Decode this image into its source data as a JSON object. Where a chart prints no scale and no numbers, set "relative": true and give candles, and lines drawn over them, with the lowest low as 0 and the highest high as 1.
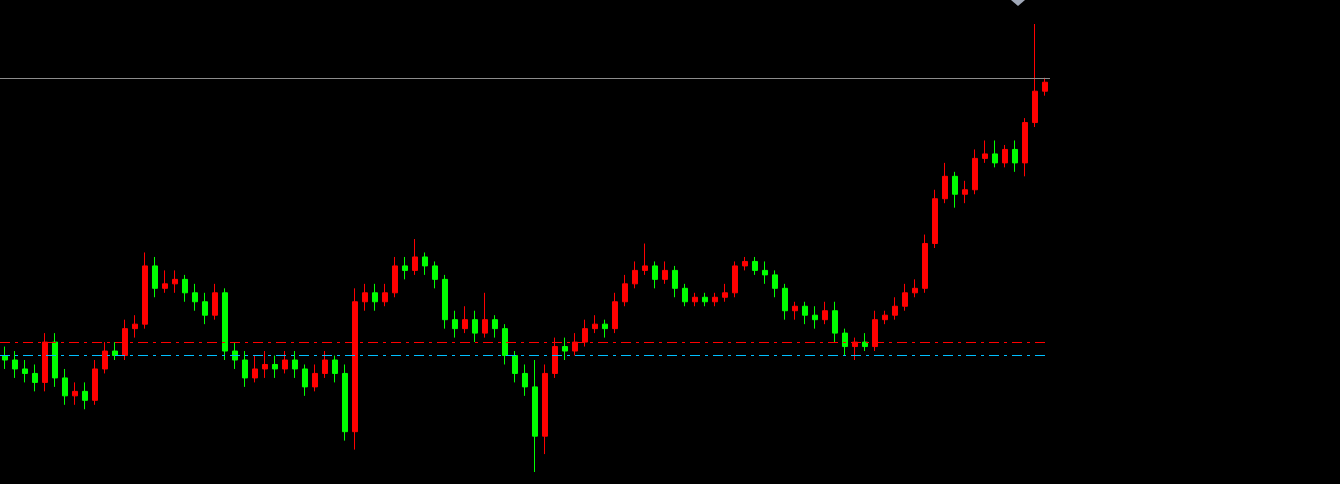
{
  "chart_data": {
    "type": "candlestick",
    "relative": true,
    "categories": [
      null,
      null,
      null,
      null,
      null,
      null,
      null,
      null,
      null,
      null,
      null,
      null,
      null,
      null,
      null,
      null,
      null,
      null,
      null,
      null,
      null,
      null,
      null,
      null,
      null,
      null,
      null,
      null,
      null,
      null,
      null,
      null,
      null,
      null,
      null,
      null,
      null,
      null,
      null,
      null,
      null,
      null,
      null,
      null,
      null,
      null,
      null,
      null,
      null,
      null,
      null,
      null,
      null,
      null,
      null,
      null,
      null,
      null,
      null,
      null,
      null,
      null,
      null,
      null,
      null,
      null,
      null,
      null,
      null,
      null,
      null,
      null,
      null,
      null,
      null,
      null,
      null,
      null,
      null,
      null,
      null,
      null,
      null,
      null,
      null,
      null,
      null,
      null,
      null,
      null,
      null,
      null,
      null,
      null,
      null,
      null,
      null,
      null,
      null,
      null,
      null,
      null,
      null,
      null,
      null
    ],
    "ohlc": [
      [
        0.26,
        0.28,
        0.23,
        0.25
      ],
      [
        0.25,
        0.27,
        0.21,
        0.23
      ],
      [
        0.23,
        0.25,
        0.2,
        0.22
      ],
      [
        0.22,
        0.24,
        0.18,
        0.2
      ],
      [
        0.2,
        0.31,
        0.18,
        0.29
      ],
      [
        0.29,
        0.31,
        0.19,
        0.21
      ],
      [
        0.21,
        0.23,
        0.15,
        0.17
      ],
      [
        0.17,
        0.2,
        0.15,
        0.18
      ],
      [
        0.18,
        0.2,
        0.14,
        0.16
      ],
      [
        0.16,
        0.25,
        0.15,
        0.23
      ],
      [
        0.23,
        0.29,
        0.22,
        0.27
      ],
      [
        0.27,
        0.29,
        0.25,
        0.26
      ],
      [
        0.26,
        0.34,
        0.25,
        0.32
      ],
      [
        0.32,
        0.35,
        0.3,
        0.33
      ],
      [
        0.33,
        0.49,
        0.32,
        0.46
      ],
      [
        0.46,
        0.48,
        0.39,
        0.41
      ],
      [
        0.41,
        0.45,
        0.4,
        0.42
      ],
      [
        0.42,
        0.45,
        0.4,
        0.43
      ],
      [
        0.43,
        0.44,
        0.38,
        0.4
      ],
      [
        0.4,
        0.42,
        0.36,
        0.38
      ],
      [
        0.38,
        0.4,
        0.33,
        0.35
      ],
      [
        0.35,
        0.42,
        0.34,
        0.4
      ],
      [
        0.4,
        0.41,
        0.25,
        0.27
      ],
      [
        0.27,
        0.29,
        0.23,
        0.25
      ],
      [
        0.25,
        0.27,
        0.19,
        0.21
      ],
      [
        0.21,
        0.26,
        0.2,
        0.23
      ],
      [
        0.23,
        0.27,
        0.21,
        0.24
      ],
      [
        0.24,
        0.26,
        0.21,
        0.23
      ],
      [
        0.23,
        0.27,
        0.22,
        0.25
      ],
      [
        0.25,
        0.27,
        0.21,
        0.23
      ],
      [
        0.23,
        0.24,
        0.17,
        0.19
      ],
      [
        0.19,
        0.24,
        0.18,
        0.22
      ],
      [
        0.22,
        0.27,
        0.21,
        0.25
      ],
      [
        0.25,
        0.26,
        0.2,
        0.22
      ],
      [
        0.22,
        0.24,
        0.07,
        0.09
      ],
      [
        0.09,
        0.41,
        0.05,
        0.38
      ],
      [
        0.38,
        0.42,
        0.36,
        0.4
      ],
      [
        0.4,
        0.42,
        0.36,
        0.38
      ],
      [
        0.38,
        0.42,
        0.37,
        0.4
      ],
      [
        0.4,
        0.48,
        0.39,
        0.46
      ],
      [
        0.46,
        0.48,
        0.43,
        0.45
      ],
      [
        0.45,
        0.52,
        0.44,
        0.48
      ],
      [
        0.48,
        0.49,
        0.44,
        0.46
      ],
      [
        0.46,
        0.47,
        0.41,
        0.43
      ],
      [
        0.43,
        0.44,
        0.32,
        0.34
      ],
      [
        0.34,
        0.36,
        0.3,
        0.32
      ],
      [
        0.32,
        0.37,
        0.31,
        0.34
      ],
      [
        0.34,
        0.36,
        0.29,
        0.31
      ],
      [
        0.31,
        0.4,
        0.3,
        0.34
      ],
      [
        0.34,
        0.35,
        0.3,
        0.32
      ],
      [
        0.32,
        0.33,
        0.24,
        0.26
      ],
      [
        0.26,
        0.27,
        0.2,
        0.22
      ],
      [
        0.22,
        0.24,
        0.17,
        0.19
      ],
      [
        0.19,
        0.25,
        0.0,
        0.08
      ],
      [
        0.08,
        0.24,
        0.04,
        0.22
      ],
      [
        0.22,
        0.3,
        0.21,
        0.28
      ],
      [
        0.28,
        0.3,
        0.25,
        0.27
      ],
      [
        0.27,
        0.31,
        0.26,
        0.29
      ],
      [
        0.29,
        0.34,
        0.28,
        0.32
      ],
      [
        0.32,
        0.35,
        0.31,
        0.33
      ],
      [
        0.33,
        0.34,
        0.3,
        0.32
      ],
      [
        0.32,
        0.4,
        0.31,
        0.38
      ],
      [
        0.38,
        0.44,
        0.37,
        0.42
      ],
      [
        0.42,
        0.47,
        0.41,
        0.45
      ],
      [
        0.45,
        0.51,
        0.44,
        0.46
      ],
      [
        0.46,
        0.47,
        0.41,
        0.43
      ],
      [
        0.43,
        0.47,
        0.42,
        0.45
      ],
      [
        0.45,
        0.46,
        0.39,
        0.41
      ],
      [
        0.41,
        0.42,
        0.37,
        0.38
      ],
      [
        0.38,
        0.4,
        0.37,
        0.39
      ],
      [
        0.39,
        0.4,
        0.37,
        0.38
      ],
      [
        0.38,
        0.4,
        0.37,
        0.39
      ],
      [
        0.39,
        0.42,
        0.38,
        0.4
      ],
      [
        0.4,
        0.47,
        0.39,
        0.46
      ],
      [
        0.46,
        0.48,
        0.45,
        0.47
      ],
      [
        0.47,
        0.48,
        0.44,
        0.45
      ],
      [
        0.45,
        0.47,
        0.42,
        0.44
      ],
      [
        0.44,
        0.45,
        0.39,
        0.41
      ],
      [
        0.41,
        0.42,
        0.34,
        0.36
      ],
      [
        0.36,
        0.38,
        0.34,
        0.37
      ],
      [
        0.37,
        0.38,
        0.33,
        0.35
      ],
      [
        0.35,
        0.37,
        0.32,
        0.34
      ],
      [
        0.34,
        0.38,
        0.33,
        0.36
      ],
      [
        0.36,
        0.38,
        0.29,
        0.31
      ],
      [
        0.31,
        0.32,
        0.26,
        0.28
      ],
      [
        0.28,
        0.3,
        0.25,
        0.29
      ],
      [
        0.29,
        0.31,
        0.27,
        0.28
      ],
      [
        0.28,
        0.36,
        0.27,
        0.34
      ],
      [
        0.34,
        0.36,
        0.33,
        0.35
      ],
      [
        0.35,
        0.39,
        0.34,
        0.37
      ],
      [
        0.37,
        0.42,
        0.36,
        0.4
      ],
      [
        0.4,
        0.43,
        0.39,
        0.41
      ],
      [
        0.41,
        0.53,
        0.4,
        0.51
      ],
      [
        0.51,
        0.63,
        0.5,
        0.61
      ],
      [
        0.61,
        0.69,
        0.6,
        0.66
      ],
      [
        0.66,
        0.67,
        0.59,
        0.62
      ],
      [
        0.62,
        0.65,
        0.6,
        0.63
      ],
      [
        0.63,
        0.72,
        0.62,
        0.7
      ],
      [
        0.7,
        0.74,
        0.69,
        0.71
      ],
      [
        0.71,
        0.74,
        0.68,
        0.69
      ],
      [
        0.69,
        0.73,
        0.68,
        0.72
      ],
      [
        0.72,
        0.74,
        0.67,
        0.69
      ],
      [
        0.69,
        0.79,
        0.66,
        0.78
      ],
      [
        0.78,
        1.0,
        0.77,
        0.85
      ],
      [
        0.85,
        0.88,
        0.84,
        0.87
      ]
    ],
    "colors": [
      "#00ff00",
      "#00ff00",
      "#00ff00",
      "#00ff00",
      "#ff0000",
      "#00ff00",
      "#00ff00",
      "#ff0000",
      "#00ff00",
      "#ff0000",
      "#ff0000",
      "#00ff00",
      "#ff0000",
      "#ff0000",
      "#ff0000",
      "#00ff00",
      "#ff0000",
      "#ff0000",
      "#00ff00",
      "#00ff00",
      "#00ff00",
      "#ff0000",
      "#00ff00",
      "#00ff00",
      "#00ff00",
      "#ff0000",
      "#ff0000",
      "#00ff00",
      "#ff0000",
      "#00ff00",
      "#00ff00",
      "#ff0000",
      "#ff0000",
      "#00ff00",
      "#00ff00",
      "#ff0000",
      "#ff0000",
      "#00ff00",
      "#ff0000",
      "#ff0000",
      "#00ff00",
      "#ff0000",
      "#00ff00",
      "#00ff00",
      "#00ff00",
      "#00ff00",
      "#ff0000",
      "#00ff00",
      "#ff0000",
      "#00ff00",
      "#00ff00",
      "#00ff00",
      "#00ff00",
      "#00ff00",
      "#ff0000",
      "#ff0000",
      "#00ff00",
      "#ff0000",
      "#ff0000",
      "#ff0000",
      "#00ff00",
      "#ff0000",
      "#ff0000",
      "#ff0000",
      "#ff0000",
      "#00ff00",
      "#ff0000",
      "#00ff00",
      "#00ff00",
      "#ff0000",
      "#00ff00",
      "#ff0000",
      "#ff0000",
      "#ff0000",
      "#ff0000",
      "#00ff00",
      "#00ff00",
      "#00ff00",
      "#00ff00",
      "#ff0000",
      "#00ff00",
      "#00ff00",
      "#ff0000",
      "#00ff00",
      "#00ff00",
      "#ff0000",
      "#00ff00",
      "#ff0000",
      "#ff0000",
      "#ff0000",
      "#ff0000",
      "#ff0000",
      "#ff0000",
      "#ff0000",
      "#ff0000",
      "#00ff00",
      "#ff0000",
      "#ff0000",
      "#ff0000",
      "#00ff00",
      "#ff0000",
      "#00ff00",
      "#ff0000",
      "#ff0000",
      "#ff0000"
    ],
    "ref_lines": [
      {
        "axis": "y",
        "value": 0.88,
        "color": "#8c8c8c",
        "line_style": "solid"
      },
      {
        "axis": "y",
        "value": 0.29,
        "color": "#ff0000",
        "line_style": "dashed"
      },
      {
        "axis": "y",
        "value": 0.26,
        "color": "#00bfff",
        "line_style": "dashed"
      }
    ],
    "grid": false
  }
}
